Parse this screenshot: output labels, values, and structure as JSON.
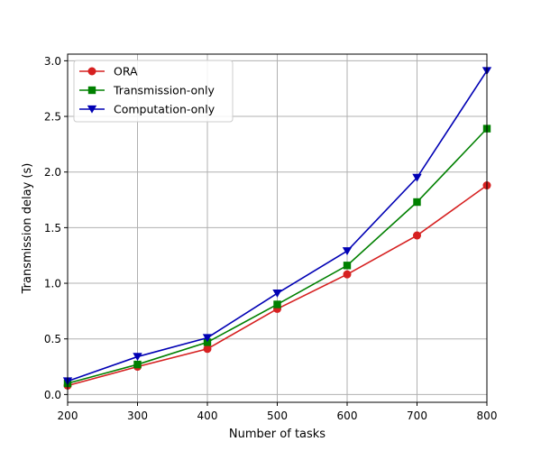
{
  "chart_data": {
    "type": "line",
    "title": "",
    "xlabel": "Number of tasks",
    "ylabel": "Transmission delay (s)",
    "x": [
      200,
      300,
      400,
      500,
      600,
      700,
      800
    ],
    "xlim": [
      200,
      800
    ],
    "ylim": [
      -0.07,
      3.06
    ],
    "xticks": [
      200,
      300,
      400,
      500,
      600,
      700,
      800
    ],
    "yticks": [
      0.0,
      0.5,
      1.0,
      1.5,
      2.0,
      2.5,
      3.0
    ],
    "ytick_labels": [
      "0.0",
      "0.5",
      "1.0",
      "1.5",
      "2.0",
      "2.5",
      "3.0"
    ],
    "grid": true,
    "legend_position": "top-left",
    "series": [
      {
        "name": "ORA",
        "color": "#d62020",
        "marker": "circle",
        "values": [
          0.08,
          0.25,
          0.41,
          0.77,
          1.08,
          1.43,
          1.88
        ]
      },
      {
        "name": "Transmission-only",
        "color": "#008000",
        "marker": "square",
        "values": [
          0.1,
          0.27,
          0.47,
          0.81,
          1.16,
          1.73,
          2.39
        ]
      },
      {
        "name": "Computation-only",
        "color": "#0000b4",
        "marker": "triangle-down",
        "values": [
          0.12,
          0.34,
          0.51,
          0.91,
          1.29,
          1.95,
          2.91
        ]
      }
    ]
  }
}
